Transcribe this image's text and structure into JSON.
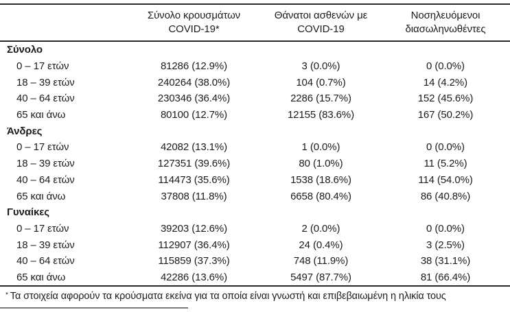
{
  "colors": {
    "text": "#1b1b1f",
    "rule": "#2a2a2a",
    "footnote_rule": "#7a7a7a"
  },
  "header": {
    "cases": {
      "line1": "Σύνολο κρουσμάτων",
      "line2": "COVID-19*"
    },
    "deaths": {
      "line1": "Θάνατοι ασθενών με",
      "line2": "COVID-19"
    },
    "intubated": {
      "line1": "Νοσηλευόμενοι",
      "line2": "διασωληνωθέντες"
    }
  },
  "sections": [
    {
      "label": "Σύνολο",
      "rows": [
        {
          "age": "0 – 17 ετών",
          "cases": "81286 (12.9%)",
          "deaths": "3 (0.0%)",
          "intubated": "0 (0.0%)"
        },
        {
          "age": "18 – 39 ετών",
          "cases": "240264 (38.0%)",
          "deaths": "104 (0.7%)",
          "intubated": "14 (4.2%)"
        },
        {
          "age": "40 – 64 ετών",
          "cases": "230346 (36.4%)",
          "deaths": "2286 (15.7%)",
          "intubated": "152 (45.6%)"
        },
        {
          "age": "65 και άνω",
          "cases": "80100 (12.7%)",
          "deaths": "12155 (83.6%)",
          "intubated": "167 (50.2%)"
        }
      ]
    },
    {
      "label": "Άνδρες",
      "rows": [
        {
          "age": "0 – 17 ετών",
          "cases": "42082 (13.1%)",
          "deaths": "1 (0.0%)",
          "intubated": "0 (0.0%)"
        },
        {
          "age": "18 – 39 ετών",
          "cases": "127351 (39.6%)",
          "deaths": "80 (1.0%)",
          "intubated": "11 (5.2%)"
        },
        {
          "age": "40 – 64 ετών",
          "cases": "114473 (35.6%)",
          "deaths": "1538 (18.6%)",
          "intubated": "114 (54.0%)"
        },
        {
          "age": "65 και άνω",
          "cases": "37808 (11.8%)",
          "deaths": "6658 (80.4%)",
          "intubated": "86 (40.8%)"
        }
      ]
    },
    {
      "label": "Γυναίκες",
      "rows": [
        {
          "age": "0 – 17 ετών",
          "cases": "39203 (12.6%)",
          "deaths": "2 (0.0%)",
          "intubated": "0 (0.0%)"
        },
        {
          "age": "18 – 39 ετών",
          "cases": "112907 (36.4%)",
          "deaths": "24 (0.4%)",
          "intubated": "3 (2.5%)"
        },
        {
          "age": "40 – 64 ετών",
          "cases": "115859 (37.3%)",
          "deaths": "748 (11.9%)",
          "intubated": "38 (31.1%)"
        },
        {
          "age": "65 και άνω",
          "cases": "42286 (13.6%)",
          "deaths": "5497 (87.7%)",
          "intubated": "81 (66.4%)"
        }
      ]
    }
  ],
  "footnote": {
    "marker": "*",
    "text": "Τα στοιχεία αφορούν τα κρούσματα εκείνα για τα οποία είναι γνωστή και επιβεβαιωμένη η ηλικία τους"
  }
}
